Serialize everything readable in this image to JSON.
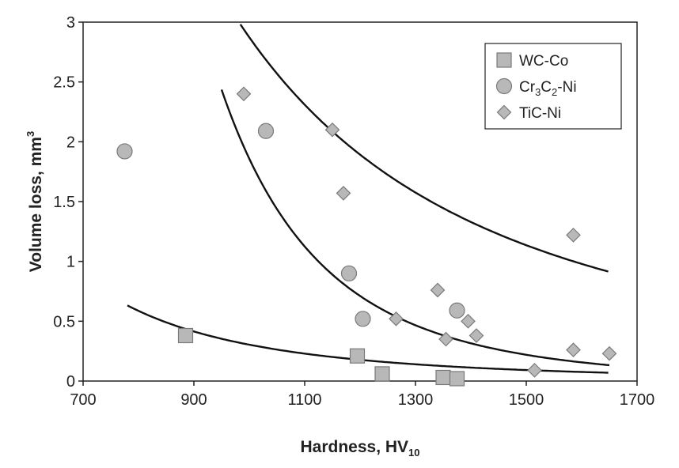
{
  "chart_data": {
    "type": "scatter",
    "xlabel": {
      "main": "Hardness, HV",
      "sub": "10"
    },
    "ylabel": {
      "main": "Volume loss, mm",
      "sup": "3"
    },
    "xlim": [
      700,
      1700
    ],
    "ylim": [
      0,
      3
    ],
    "x_ticks": [
      700,
      900,
      1100,
      1300,
      1500,
      1700
    ],
    "y_ticks": [
      0,
      0.5,
      1,
      1.5,
      2,
      2.5,
      3
    ],
    "y_tick_labels": [
      "0",
      "0.5",
      "1",
      "1.5",
      "2",
      "2.5",
      "3"
    ],
    "grid": false,
    "legend_position": "top-right",
    "series": [
      {
        "name": "WC-Co",
        "name_parts": [
          "WC-Co"
        ],
        "marker": "square",
        "color": "#b8b8b8",
        "stroke": "#7a7a7a",
        "points": [
          [
            885,
            0.38
          ],
          [
            1195,
            0.21
          ],
          [
            1240,
            0.06
          ],
          [
            1350,
            0.03
          ],
          [
            1375,
            0.02
          ]
        ],
        "fit": {
          "a": 215000000.0,
          "b": -2.95,
          "x_range": [
            780,
            1650
          ]
        }
      },
      {
        "name": "Cr3C2-Ni",
        "name_parts": [
          "Cr",
          "3",
          "C",
          "2",
          "-Ni"
        ],
        "marker": "circle",
        "color": "#b8b8b8",
        "stroke": "#7a7a7a",
        "points": [
          [
            775,
            1.92
          ],
          [
            1030,
            2.09
          ],
          [
            1180,
            0.9
          ],
          [
            1205,
            0.52
          ],
          [
            1375,
            0.59
          ]
        ],
        "fit": {
          "a": 21300000.0,
          "b": -2.29,
          "x_range": [
            780,
            1650
          ]
        }
      },
      {
        "name": "TiC-Ni",
        "name_parts": [
          "TiC-Ni"
        ],
        "marker": "diamond",
        "color": "#b8b8b8",
        "stroke": "#7a7a7a",
        "points": [
          [
            990,
            2.4
          ],
          [
            1150,
            2.1
          ],
          [
            1170,
            1.57
          ],
          [
            1265,
            0.52
          ],
          [
            1340,
            0.76
          ],
          [
            1355,
            0.35
          ],
          [
            1395,
            0.5
          ],
          [
            1410,
            0.38
          ],
          [
            1515,
            0.09
          ],
          [
            1585,
            1.22
          ],
          [
            1585,
            0.26
          ],
          [
            1650,
            0.23
          ]
        ],
        "fit": {
          "a": 1.2e+16,
          "b": -5.27,
          "x_range": [
            950,
            1650
          ]
        }
      }
    ]
  }
}
